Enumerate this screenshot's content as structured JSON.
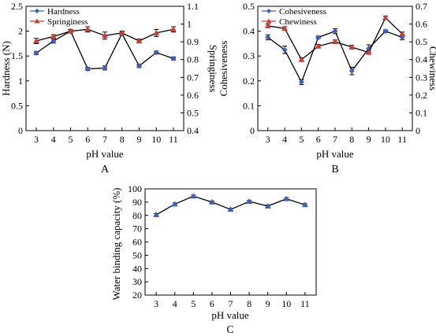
{
  "chart_data": [
    {
      "panel": "A",
      "type": "line",
      "xlabel": "pH value",
      "categories": [
        "3",
        "4",
        "5",
        "6",
        "7",
        "8",
        "9",
        "10",
        "11"
      ],
      "y_left": {
        "label": "Hardness (N)",
        "lim": [
          0,
          2.5
        ],
        "ticks": [
          "0",
          "0.5",
          "1",
          "1.5",
          "2",
          "2.5"
        ]
      },
      "y_right": {
        "label": "Springiness",
        "lim": [
          0.4,
          1.1
        ],
        "ticks": [
          "0.4",
          "0.5",
          "0.6",
          "0.7",
          "0.8",
          "0.9",
          "1",
          "1.1"
        ]
      },
      "series": [
        {
          "name": "Hardness",
          "axis": "left",
          "marker": "diamond",
          "color": "#3a5fc8",
          "values": [
            1.56,
            1.8,
            2.0,
            1.24,
            1.26,
            1.95,
            1.3,
            1.57,
            1.45
          ],
          "errors": [
            0.03,
            0.04,
            0.03,
            0.03,
            0.04,
            0.03,
            0.03,
            0.03,
            0.03
          ]
        },
        {
          "name": "Springiness",
          "axis": "right",
          "marker": "triangle",
          "color": "#d23c2e",
          "values": [
            0.905,
            0.93,
            0.96,
            0.97,
            0.935,
            0.95,
            0.905,
            0.95,
            0.97
          ],
          "errors": [
            0.015,
            0.01,
            0.01,
            0.015,
            0.02,
            0.01,
            0.01,
            0.02,
            0.015
          ]
        }
      ],
      "grid": false,
      "legend": "top-left"
    },
    {
      "panel": "B",
      "type": "line",
      "xlabel": "pH value",
      "categories": [
        "3",
        "4",
        "5",
        "6",
        "7",
        "8",
        "9",
        "10",
        "11"
      ],
      "y_left": {
        "label": "Cohesiveness",
        "lim": [
          0,
          0.5
        ],
        "ticks": [
          "0",
          "0.1",
          "0.2",
          "0.3",
          "0.4",
          "0.5"
        ]
      },
      "y_right": {
        "label": "Chewiness",
        "lim": [
          0,
          0.7
        ],
        "ticks": [
          "0",
          "0.1",
          "0.2",
          "0.3",
          "0.4",
          "0.5",
          "0.6",
          "0.7"
        ]
      },
      "series": [
        {
          "name": "Cohesiveness",
          "axis": "left",
          "marker": "diamond",
          "color": "#3a5fc8",
          "values": [
            0.375,
            0.325,
            0.195,
            0.375,
            0.4,
            0.24,
            0.33,
            0.4,
            0.375
          ],
          "errors": [
            0.01,
            0.015,
            0.01,
            0.005,
            0.01,
            0.015,
            0.015,
            0.005,
            0.01
          ]
        },
        {
          "name": "Chewiness",
          "axis": "right",
          "marker": "triangle",
          "color": "#d23c2e",
          "values": [
            0.59,
            0.575,
            0.4,
            0.475,
            0.5,
            0.47,
            0.44,
            0.635,
            0.545
          ],
          "errors": [
            0.01,
            0.01,
            0.01,
            0.01,
            0.01,
            0.01,
            0.01,
            0.01,
            0.01
          ]
        }
      ],
      "grid": false,
      "legend": "top-left"
    },
    {
      "panel": "C",
      "type": "line",
      "xlabel": "pH value",
      "categories": [
        "3",
        "4",
        "5",
        "6",
        "7",
        "8",
        "9",
        "10",
        "11"
      ],
      "y_left": {
        "label": "Water binding capacity (%)",
        "lim": [
          20,
          100
        ],
        "ticks": [
          "20",
          "30",
          "40",
          "50",
          "60",
          "70",
          "80",
          "90",
          "100"
        ]
      },
      "series": [
        {
          "axis": "left",
          "marker": "triangle",
          "color": "#3a5fc8",
          "values": [
            80.5,
            88.5,
            94.5,
            90,
            84.5,
            90.5,
            87,
            92.5,
            88
          ],
          "errors": [
            0.8,
            0.8,
            0.8,
            0.8,
            0.8,
            0.8,
            0.8,
            0.8,
            0.8
          ]
        }
      ],
      "grid": false,
      "legend": "none"
    }
  ]
}
